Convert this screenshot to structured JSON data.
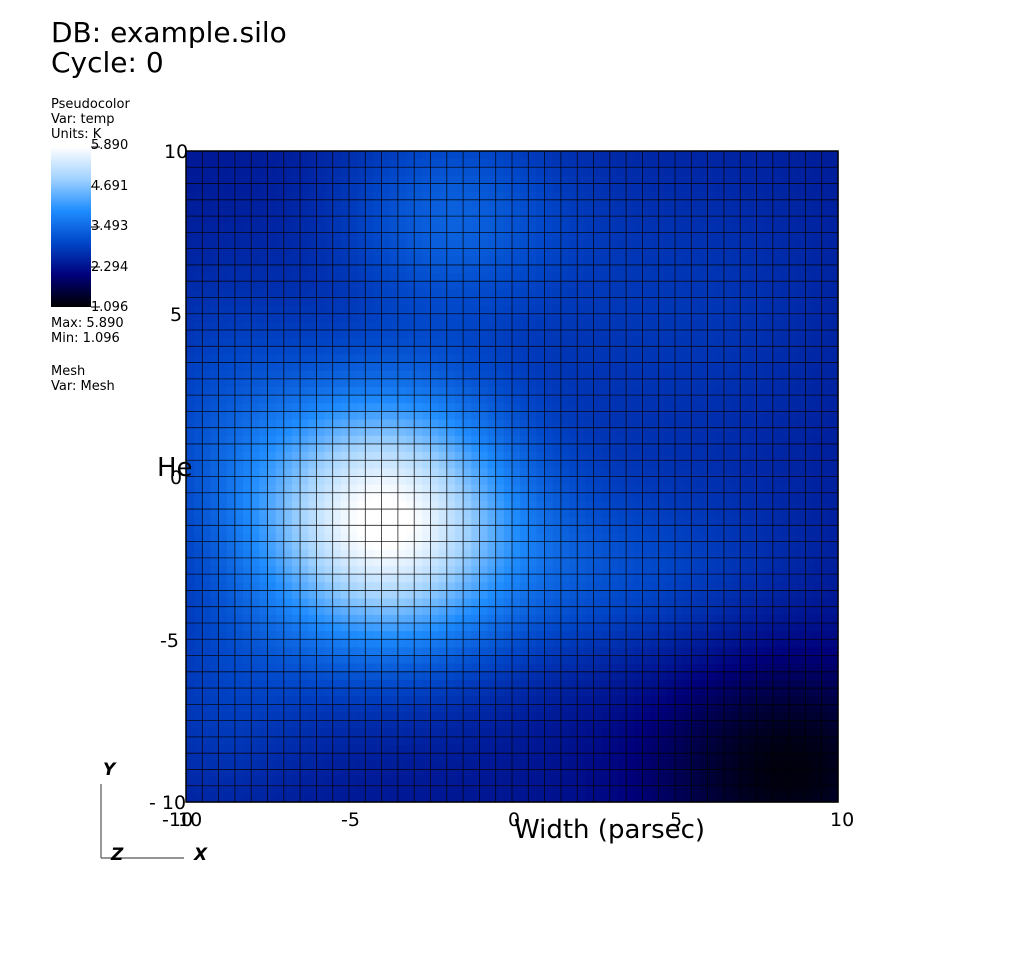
{
  "header": {
    "db_line": "DB: example.silo",
    "cycle_line": "Cycle: 0"
  },
  "legend": {
    "plot_type": "Pseudocolor",
    "var_line": "Var: temp",
    "units_line": "Units: K",
    "ticks": [
      "5.890",
      "4.691",
      "3.493",
      "2.294",
      "1.096"
    ],
    "max_line": "Max:  5.890",
    "min_line": "Min:  1.096",
    "mesh_title": "Mesh",
    "mesh_var_line": "Var: Mesh",
    "colormap": [
      "#000000",
      "#00007a",
      "#0046c8",
      "#1e8cff",
      "#a0d2ff",
      "#ffffff"
    ]
  },
  "axis_triad": {
    "y_label": "Y",
    "z_label": "Z",
    "x_label": "X"
  },
  "chart_data": {
    "type": "heatmap",
    "title": "",
    "xlabel": "Width (parsec)",
    "ylabel": "He",
    "xlim": [
      -10,
      10
    ],
    "ylim": [
      -10,
      10
    ],
    "x_tick_labels": [
      "-10",
      "10",
      "-5",
      "0",
      "5",
      "10"
    ],
    "y_tick_labels": [
      "10",
      "5",
      "0",
      "-5",
      "- 10"
    ],
    "value_range": [
      1.096,
      5.89
    ],
    "mesh_cells": [
      40,
      40
    ],
    "grid": true,
    "features": [
      {
        "x": -4.0,
        "y": -1.3,
        "peak": 5.89,
        "sigma_x": 2.8,
        "sigma_y": 2.8
      },
      {
        "x": -2.0,
        "y": 8.0,
        "peak": 3.3,
        "sigma_x": 2.5,
        "sigma_y": 2.2
      },
      {
        "x": 3.0,
        "y": -3.0,
        "peak": 3.0,
        "sigma_x": 4.0,
        "sigma_y": 2.0
      },
      {
        "x": -9.0,
        "y": 2.0,
        "peak": 2.9,
        "sigma_x": 2.0,
        "sigma_y": 3.5
      },
      {
        "x": -9.0,
        "y": -7.0,
        "peak": 2.8,
        "sigma_x": 2.0,
        "sigma_y": 2.5
      },
      {
        "x": 5.0,
        "y": 5.0,
        "peak": 2.8,
        "sigma_x": 4.0,
        "sigma_y": 4.0
      },
      {
        "x": 8.5,
        "y": -9.0,
        "peak": 1.2,
        "sigma_x": 3.0,
        "sigma_y": 2.5
      }
    ],
    "background_value": 2.35
  }
}
